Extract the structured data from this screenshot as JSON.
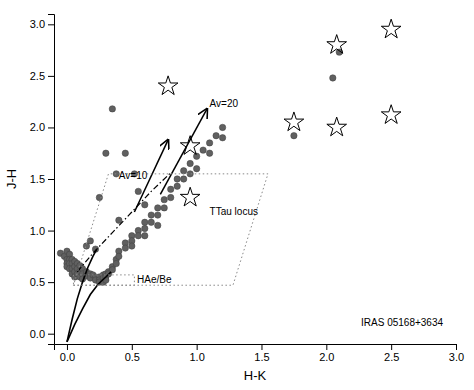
{
  "chart_data": {
    "type": "scatter",
    "xlabel": "H-K",
    "ylabel": "J-H",
    "xlim": [
      -0.1,
      3.0
    ],
    "ylim": [
      -0.1,
      3.1
    ],
    "xticks": [
      {
        "value": 0,
        "label": "0.0"
      },
      0.5,
      {
        "value": 1,
        "label": "1.0"
      },
      1.5,
      {
        "value": 2,
        "label": "2.0"
      },
      2.5,
      {
        "value": 3,
        "label": "3.0"
      }
    ],
    "yticks": [
      {
        "value": 0,
        "label": "0.0"
      },
      0.5,
      {
        "value": 1,
        "label": "1.0"
      },
      1.5,
      {
        "value": 2,
        "label": "2.0"
      },
      2.5,
      {
        "value": 3,
        "label": "3.0"
      }
    ],
    "grid": false,
    "series": [
      {
        "type": "scatter",
        "marker": "circle",
        "color": "#606060",
        "x": [
          -0.05,
          -0.02,
          0.0,
          0.0,
          0.0,
          0.0,
          0.02,
          0.02,
          0.02,
          0.02,
          0.04,
          0.04,
          0.04,
          0.04,
          0.06,
          0.06,
          0.06,
          0.06,
          0.08,
          0.08,
          0.08,
          0.1,
          0.1,
          0.1,
          0.12,
          0.12,
          0.12,
          0.15,
          0.15,
          0.18,
          0.18,
          0.2,
          0.22,
          0.22,
          0.25,
          0.25,
          0.25,
          0.28,
          0.28,
          0.28,
          0.3,
          0.3,
          0.3,
          0.32,
          0.32,
          0.35,
          0.35,
          0.38,
          0.38,
          0.4,
          0.4,
          0.45,
          0.45,
          0.5,
          0.5,
          0.5,
          0.55,
          0.55,
          0.6,
          0.6,
          0.6,
          0.65,
          0.65,
          0.7,
          0.7,
          0.7,
          0.75,
          0.75,
          0.8,
          0.8,
          0.85,
          0.85,
          0.9,
          0.9,
          0.95,
          0.95,
          1.0,
          1.0,
          1.05,
          1.1,
          1.1,
          1.15,
          1.2,
          1.2,
          0.35,
          1.75,
          2.1,
          2.05,
          0.45,
          0.52,
          0.3,
          0.38,
          0.55,
          0.6,
          0.25,
          0.4,
          0.18,
          0.22,
          0.15
        ],
        "values": [
          0.78,
          0.75,
          0.8,
          0.72,
          0.68,
          0.65,
          0.77,
          0.72,
          0.68,
          0.63,
          0.72,
          0.68,
          0.63,
          0.58,
          0.7,
          0.65,
          0.6,
          0.55,
          0.68,
          0.63,
          0.58,
          0.66,
          0.6,
          0.55,
          0.63,
          0.58,
          0.53,
          0.6,
          0.56,
          0.58,
          0.54,
          0.57,
          0.55,
          0.52,
          0.55,
          0.52,
          0.5,
          0.57,
          0.54,
          0.5,
          0.58,
          0.55,
          0.52,
          0.6,
          0.58,
          0.65,
          0.62,
          0.72,
          0.68,
          0.8,
          0.75,
          0.88,
          0.83,
          0.95,
          0.9,
          0.85,
          1.0,
          0.95,
          1.08,
          1.02,
          0.95,
          1.15,
          1.08,
          1.22,
          1.15,
          1.05,
          1.3,
          1.22,
          1.4,
          1.32,
          1.5,
          1.43,
          1.58,
          1.5,
          1.65,
          1.55,
          1.72,
          1.6,
          1.78,
          1.85,
          1.75,
          1.92,
          2.0,
          1.9,
          2.18,
          1.92,
          2.73,
          2.48,
          1.75,
          1.55,
          1.75,
          1.55,
          1.38,
          1.25,
          1.32,
          1.1,
          0.9,
          0.82,
          0.85
        ]
      },
      {
        "type": "scatter",
        "marker": "open-star",
        "color": "#000000",
        "x": [
          0.78,
          0.95,
          0.95,
          1.75,
          2.08,
          2.08,
          2.5,
          2.5
        ],
        "values": [
          2.4,
          1.82,
          1.32,
          2.05,
          2.8,
          2.0,
          2.95,
          2.12
        ]
      },
      {
        "type": "line",
        "line_style": "solid",
        "color": "#000000",
        "x": [
          0.0,
          0.06,
          0.12,
          0.18,
          0.24,
          0.3,
          0.34
        ],
        "values": [
          -0.08,
          0.09,
          0.24,
          0.38,
          0.48,
          0.55,
          0.6
        ]
      },
      {
        "type": "line",
        "line_style": "solid",
        "color": "#000000",
        "x": [
          0.0,
          0.04,
          0.08,
          0.12,
          0.16,
          0.2,
          0.23
        ],
        "values": [
          -0.08,
          0.14,
          0.34,
          0.5,
          0.64,
          0.75,
          0.82
        ]
      },
      {
        "type": "line",
        "line_style": "dashdot",
        "color": "#000000",
        "x": [
          0.08,
          0.2,
          0.35,
          0.5,
          0.65,
          0.8
        ],
        "values": [
          0.6,
          0.78,
          0.98,
          1.18,
          1.38,
          1.56
        ]
      },
      {
        "type": "arrow",
        "line_style": "solid",
        "color": "#000000",
        "x": [
          0.52,
          0.78
        ],
        "values": [
          1.18,
          1.88
        ]
      },
      {
        "type": "arrow",
        "line_style": "solid",
        "color": "#000000",
        "x": [
          0.72,
          1.08
        ],
        "values": [
          1.35,
          2.18
        ]
      },
      {
        "type": "line",
        "line_style": "dotted",
        "color": "#888888",
        "x": [
          0.05,
          1.28,
          1.55,
          0.32,
          0.05
        ],
        "values": [
          0.47,
          0.47,
          1.55,
          1.55,
          0.47
        ]
      },
      {
        "type": "line",
        "line_style": "dotted",
        "color": "#888888",
        "x": [
          0.05,
          0.52,
          0.52,
          0.05,
          0.05
        ],
        "values": [
          0.47,
          0.47,
          0.57,
          0.57,
          0.47
        ]
      }
    ],
    "annotations": [
      {
        "text": "Av=10",
        "x": 0.4,
        "y": 1.53
      },
      {
        "text": "Av=20",
        "x": 1.1,
        "y": 2.22
      },
      {
        "text": "TTau locus",
        "x": 1.1,
        "y": 1.18
      },
      {
        "text": "HAe/Be",
        "x": 0.54,
        "y": 0.52
      },
      {
        "text": "IRAS 05168+3634",
        "x": 2.9,
        "y": 0.1
      }
    ]
  }
}
